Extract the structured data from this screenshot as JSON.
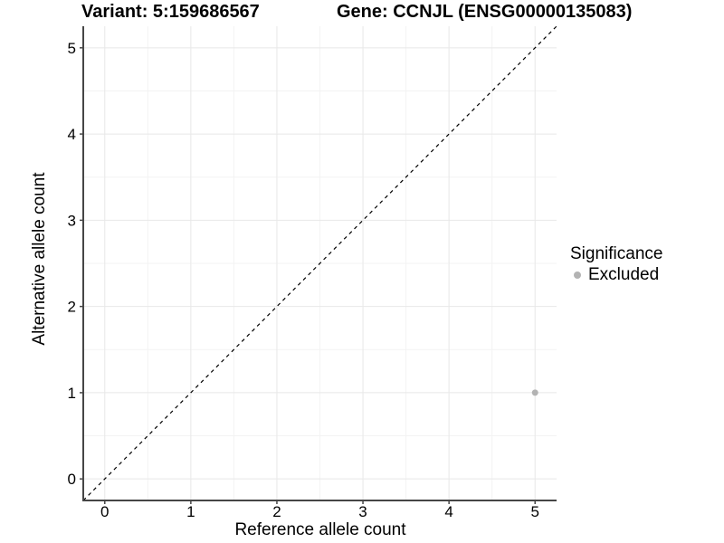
{
  "chart_data": {
    "type": "scatter",
    "title_left": "Variant: 5:159686567",
    "title_right": "Gene: CCNJL (ENSG00000135083)",
    "xlabel": "Reference allele count",
    "ylabel": "Alternative allele count",
    "xlim": [
      -0.25,
      5.25
    ],
    "ylim": [
      -0.25,
      5.25
    ],
    "x_ticks": [
      0,
      1,
      2,
      3,
      4,
      5
    ],
    "y_ticks": [
      0,
      1,
      2,
      3,
      4,
      5
    ],
    "grid": "major and minor gridlines, minor at 0.5 steps",
    "points": [
      {
        "x": 5,
        "y": 1,
        "significance": "Excluded"
      }
    ],
    "reference_line": {
      "equation": "y = x",
      "style": "dashed",
      "color": "#000000"
    },
    "legend": {
      "title": "Significance",
      "position": "right",
      "items": [
        {
          "label": "Excluded",
          "color": "#b3b3b3"
        }
      ]
    },
    "colors": {
      "point": "#b3b3b3",
      "grid_major": "#e8e8e8",
      "grid_minor": "#f3f3f3",
      "axis_line": "#464646",
      "text": "#000000",
      "background": "#ffffff"
    }
  }
}
